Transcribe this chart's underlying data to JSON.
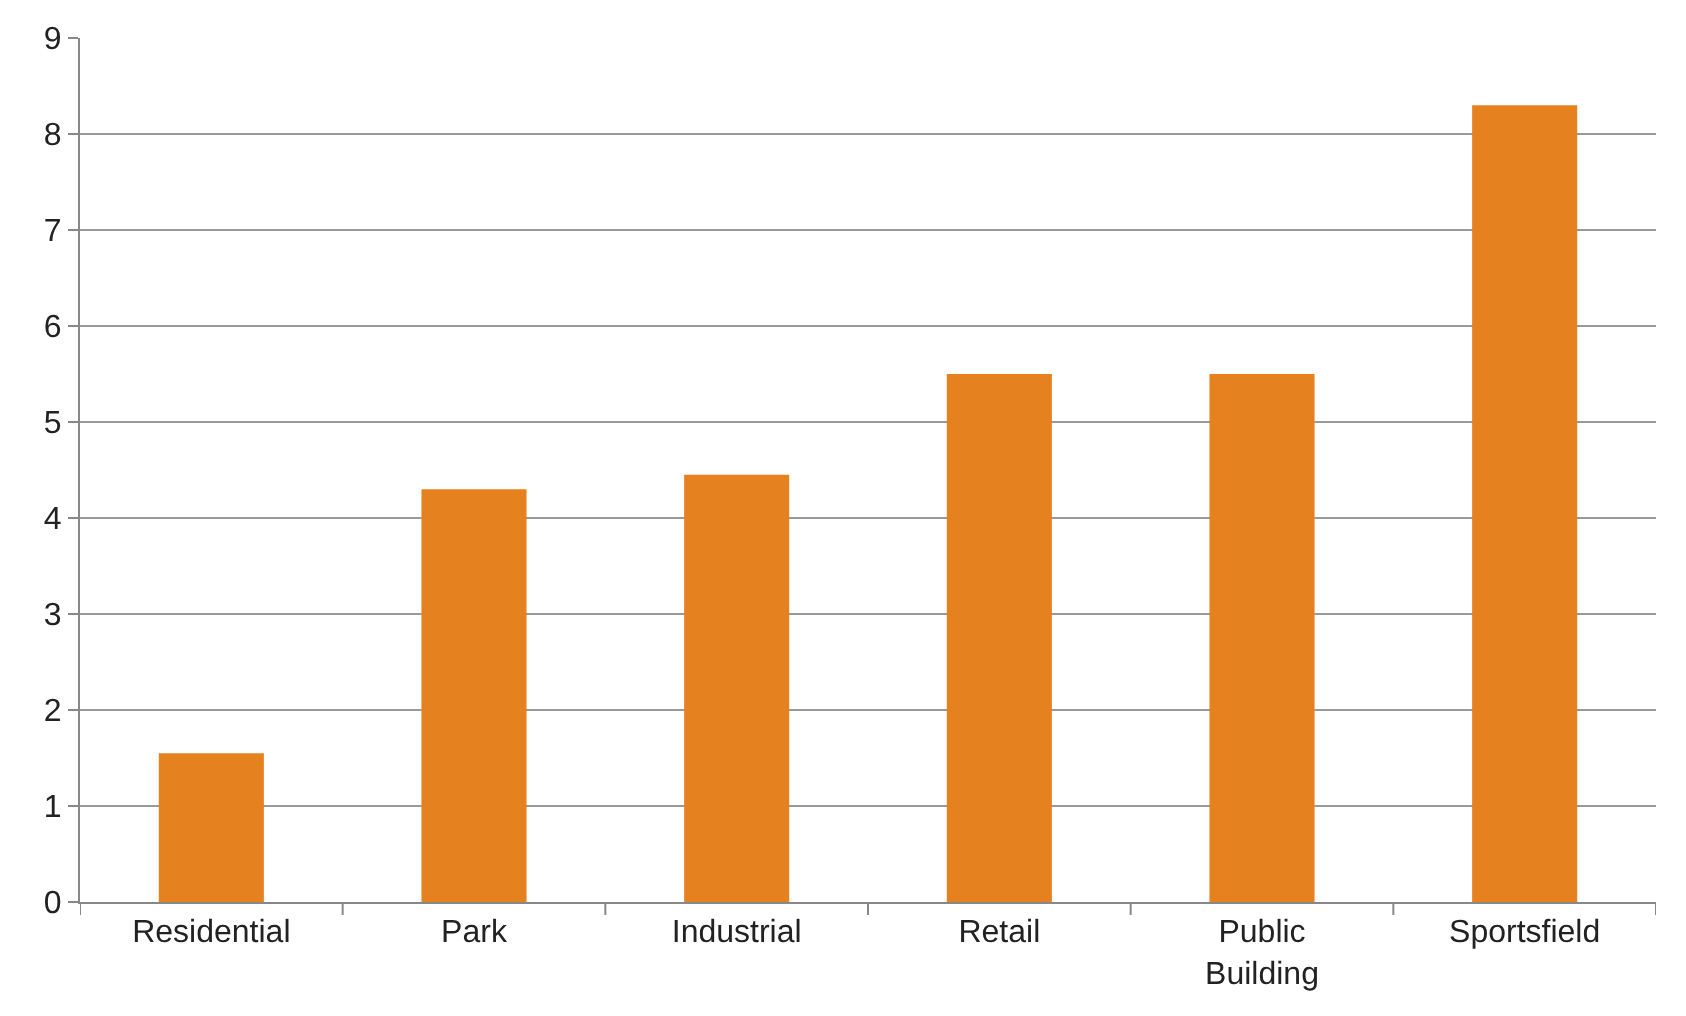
{
  "chart_data": {
    "type": "bar",
    "categories": [
      "Residential",
      "Park",
      "Industrial",
      "Retail",
      "Public Building",
      "Sportsfield"
    ],
    "values": [
      1.55,
      4.3,
      4.45,
      5.5,
      5.5,
      8.3
    ],
    "color": "#e6811f",
    "ylim": [
      0,
      9
    ],
    "yticks": [
      0,
      1,
      2,
      3,
      4,
      5,
      6,
      7,
      8,
      9
    ],
    "grid": "y"
  }
}
